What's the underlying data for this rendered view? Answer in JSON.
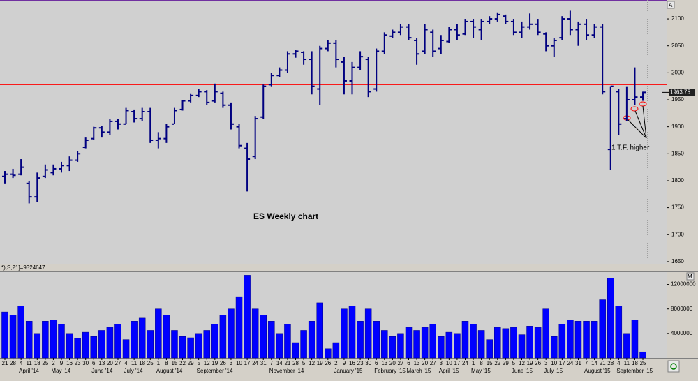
{
  "chart_data": [
    {
      "type": "ohlc",
      "color": "#000080",
      "annotations": [
        "ES Weekly chart",
        "1 T.F. higher"
      ],
      "reference_line": {
        "value": 1978,
        "color": "#ff0000"
      },
      "open": [
        1808,
        1812,
        1812,
        1795,
        1770,
        1808,
        1815,
        1822,
        1828,
        1838,
        1862,
        1878,
        1898,
        1890,
        1910,
        1905,
        1928,
        1915,
        1928,
        1875,
        1878,
        1905,
        1932,
        1948,
        1958,
        1965,
        1948,
        1962,
        1940,
        1900,
        1860,
        1845,
        1918,
        1978,
        1995,
        2005,
        2035,
        2038,
        2025,
        1970,
        2045,
        2055,
        2020,
        1985,
        2010,
        2025,
        1970,
        2040,
        2068,
        2075,
        2085,
        2060,
        2040,
        2075,
        2045,
        2058,
        2080,
        2072,
        2095,
        2080,
        2095,
        2100,
        2105,
        2095,
        2075,
        2085,
        2090,
        2072,
        2050,
        2065,
        2100,
        2080,
        2090,
        2070,
        2085,
        1858,
        1965,
        1915,
        1950,
        1955
      ],
      "high": [
        1818,
        1822,
        1840,
        1800,
        1815,
        1830,
        1830,
        1835,
        1845,
        1855,
        1880,
        1900,
        1902,
        1915,
        1915,
        1935,
        1932,
        1935,
        1935,
        1890,
        1905,
        1935,
        1950,
        1962,
        1970,
        1968,
        1980,
        1965,
        1945,
        1905,
        1870,
        1920,
        1978,
        2000,
        2010,
        2040,
        2042,
        2040,
        2040,
        2050,
        2060,
        2060,
        2030,
        2020,
        2040,
        2030,
        2045,
        2075,
        2080,
        2090,
        2090,
        2065,
        2090,
        2080,
        2070,
        2085,
        2090,
        2100,
        2100,
        2100,
        2105,
        2112,
        2108,
        2100,
        2095,
        2110,
        2100,
        2075,
        2065,
        2105,
        2115,
        2095,
        2100,
        2090,
        2090,
        1975,
        1970,
        1975,
        2010,
        1965
      ],
      "low": [
        1795,
        1805,
        1810,
        1758,
        1760,
        1805,
        1810,
        1815,
        1818,
        1835,
        1860,
        1875,
        1880,
        1885,
        1895,
        1905,
        1908,
        1910,
        1870,
        1860,
        1870,
        1905,
        1930,
        1945,
        1955,
        1940,
        1945,
        1935,
        1895,
        1860,
        1780,
        1840,
        1915,
        1975,
        1992,
        2000,
        2028,
        2015,
        1960,
        1940,
        2040,
        2010,
        1960,
        1960,
        2005,
        1955,
        1965,
        2035,
        2065,
        2070,
        2060,
        2015,
        2035,
        2030,
        2035,
        2055,
        2060,
        2070,
        2065,
        2060,
        2090,
        2095,
        2090,
        2070,
        2065,
        2080,
        2070,
        2040,
        2030,
        2060,
        2070,
        2050,
        2060,
        2065,
        1960,
        1820,
        1885,
        1910,
        1940,
        1948
      ],
      "close": [
        1812,
        1810,
        1825,
        1770,
        1805,
        1820,
        1822,
        1828,
        1838,
        1850,
        1875,
        1898,
        1890,
        1910,
        1905,
        1930,
        1915,
        1928,
        1875,
        1878,
        1900,
        1930,
        1948,
        1958,
        1965,
        1945,
        1965,
        1940,
        1905,
        1865,
        1840,
        1915,
        1975,
        1995,
        2005,
        2035,
        2040,
        2025,
        1975,
        2045,
        2055,
        2025,
        1985,
        2010,
        2030,
        1965,
        2040,
        2070,
        2075,
        2085,
        2065,
        2035,
        2080,
        2040,
        2060,
        2080,
        2070,
        2095,
        2085,
        2095,
        2100,
        2108,
        2095,
        2075,
        2085,
        2090,
        2075,
        2050,
        2060,
        2100,
        2080,
        2090,
        2070,
        2085,
        1965,
        1975,
        1905,
        1950,
        1955,
        1963.75
      ],
      "ylim": [
        1646,
        2135
      ],
      "yticks": [
        1650,
        1700,
        1750,
        1800,
        1850,
        1900,
        1950,
        2000,
        2050,
        2100
      ]
    },
    {
      "type": "bar",
      "color": "#0000ff",
      "label": "*),S,21]=9324647",
      "categories": [
        "21",
        "28",
        "4",
        "11",
        "18",
        "25",
        "2",
        "9",
        "16",
        "23",
        "30",
        "6",
        "13",
        "20",
        "27",
        "4",
        "11",
        "18",
        "25",
        "1",
        "8",
        "15",
        "22",
        "29",
        "5",
        "12",
        "19",
        "26",
        "3",
        "10",
        "17",
        "24",
        "31",
        "7",
        "14",
        "21",
        "28",
        "5",
        "12",
        "19",
        "26",
        "2",
        "9",
        "16",
        "23",
        "30",
        "6",
        "13",
        "20",
        "27",
        "6",
        "13",
        "20",
        "27",
        "3",
        "10",
        "17",
        "24",
        "1",
        "8",
        "15",
        "22",
        "29",
        "5",
        "12",
        "19",
        "26",
        "3",
        "10",
        "17",
        "24",
        "31",
        "7",
        "14",
        "21",
        "28",
        "4",
        "11",
        "18",
        "25"
      ],
      "months": [
        null,
        "April '14",
        "May '14",
        "June '14",
        "July '14",
        "August '14",
        "September '14",
        null,
        "November '14",
        null,
        "January '15",
        "February '15",
        "March '15",
        "April '15",
        "May '15",
        "June '15",
        "July '15",
        "August '15",
        "September '15"
      ],
      "values": [
        7500000,
        7000000,
        8500000,
        6000000,
        4000000,
        6000000,
        6200000,
        5500000,
        4000000,
        3200000,
        4200000,
        3500000,
        4500000,
        5000000,
        5500000,
        3000000,
        6000000,
        6500000,
        4500000,
        8000000,
        7000000,
        4500000,
        3500000,
        3300000,
        4000000,
        4500000,
        5500000,
        7000000,
        8000000,
        10000000,
        13500000,
        8000000,
        7000000,
        6000000,
        4000000,
        5500000,
        2500000,
        4500000,
        6000000,
        9000000,
        1500000,
        2500000,
        8000000,
        8500000,
        6000000,
        8000000,
        6000000,
        4500000,
        3500000,
        4000000,
        5000000,
        4500000,
        5000000,
        5500000,
        3500000,
        4200000,
        4000000,
        6000000,
        5500000,
        4500000,
        3000000,
        5000000,
        4800000,
        5000000,
        3800000,
        5200000,
        5000000,
        8000000,
        3500000,
        5500000,
        6200000,
        6000000,
        6000000,
        6000000,
        9500000,
        13000000,
        8500000,
        4000000,
        6200000,
        1000000
      ],
      "ylim": [
        0,
        14000000
      ],
      "yticks": [
        4000000,
        8000000,
        12000000
      ]
    }
  ]
}
